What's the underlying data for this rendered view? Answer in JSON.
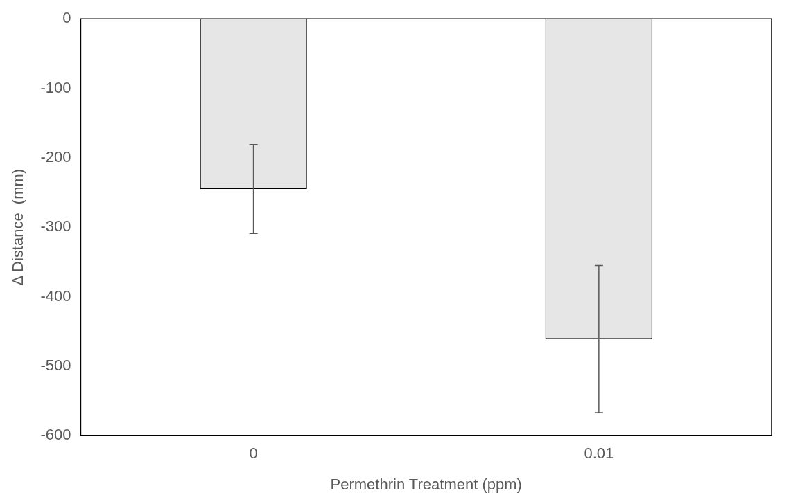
{
  "chart_data": {
    "type": "bar",
    "xlabel": "Permethrin Treatment (ppm)",
    "ylabel": "Δ Distance  (mm)",
    "categories": [
      "0",
      "0.01"
    ],
    "values": [
      -245,
      -461
    ],
    "errors": [
      64,
      106
    ],
    "color": "#e6e6e6",
    "ylim": [
      -600,
      0
    ],
    "yticks": [
      0,
      -100,
      -200,
      -300,
      -400,
      -500,
      -600
    ],
    "grid": false,
    "legend": false
  }
}
